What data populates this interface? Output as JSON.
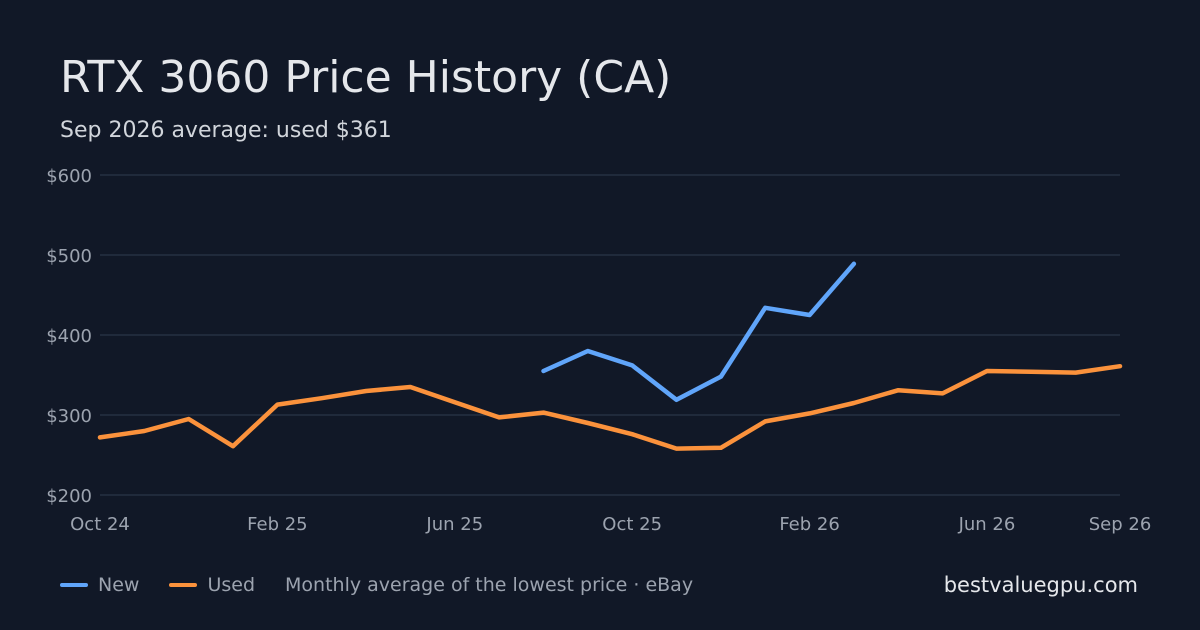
{
  "header": {
    "title": "RTX 3060 Price History (CA)",
    "subtitle": "Sep 2026 average: used $361"
  },
  "legend": {
    "new_label": "New",
    "used_label": "Used",
    "note": "Monthly average of the lowest price · eBay"
  },
  "footer": {
    "site": "bestvaluegpu.com"
  },
  "colors": {
    "background": "#111827",
    "grid": "#263042",
    "axis_text": "#9ca3af",
    "new": "#60a5fa",
    "used": "#fb923c"
  },
  "chart_data": {
    "type": "line",
    "categories": [
      "Oct 24",
      "Nov 24",
      "Dec 24",
      "Jan 25",
      "Feb 25",
      "Mar 25",
      "Apr 25",
      "May 25",
      "Jun 25",
      "Jul 25",
      "Aug 25",
      "Sep 25",
      "Oct 25",
      "Nov 25",
      "Dec 25",
      "Jan 26",
      "Feb 26",
      "Mar 26",
      "Apr 26",
      "May 26",
      "Jun 26",
      "Jul 26",
      "Aug 26",
      "Sep 26"
    ],
    "x_tick_labels": [
      {
        "index": 0,
        "label": "Oct 24"
      },
      {
        "index": 4,
        "label": "Feb 25"
      },
      {
        "index": 8,
        "label": "Jun 25"
      },
      {
        "index": 12,
        "label": "Oct 25"
      },
      {
        "index": 16,
        "label": "Feb 26"
      },
      {
        "index": 20,
        "label": "Jun 26"
      },
      {
        "index": 23,
        "label": "Sep 26"
      }
    ],
    "y_ticks": [
      {
        "value": 200,
        "label": "$200"
      },
      {
        "value": 300,
        "label": "$300"
      },
      {
        "value": 400,
        "label": "$400"
      },
      {
        "value": 500,
        "label": "$500"
      },
      {
        "value": 600,
        "label": "$600"
      }
    ],
    "ylim": [
      200,
      600
    ],
    "grid": true,
    "legend_position": "bottom-left",
    "series": [
      {
        "name": "New",
        "values": [
          null,
          null,
          null,
          null,
          null,
          null,
          null,
          null,
          null,
          null,
          355,
          380,
          362,
          319,
          348,
          434,
          425,
          489,
          null,
          null,
          null,
          null,
          null,
          null
        ]
      },
      {
        "name": "Used",
        "values": [
          272,
          280,
          295,
          261,
          313,
          321,
          330,
          335,
          316,
          297,
          303,
          290,
          276,
          258,
          259,
          292,
          302,
          315,
          331,
          327,
          355,
          354,
          353,
          361
        ]
      }
    ]
  }
}
